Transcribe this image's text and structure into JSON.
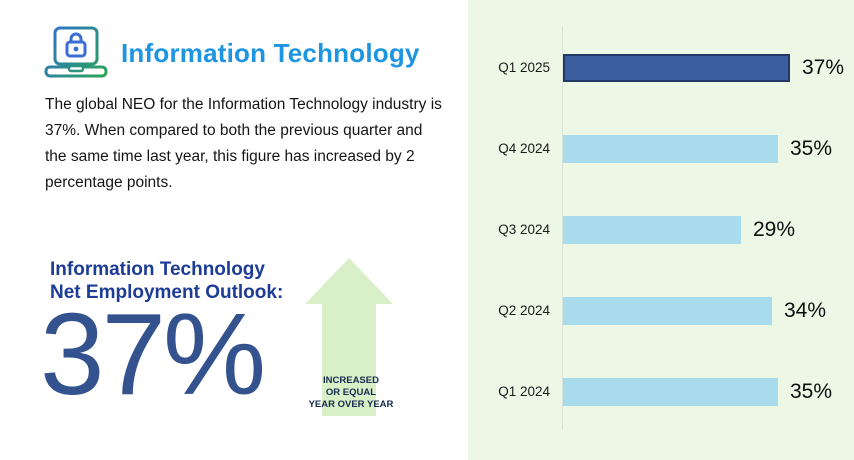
{
  "header": {
    "title": "Information Technology",
    "icon": "laptop-lock-icon"
  },
  "summary": {
    "text": "The global NEO for the Information Technology industry is 37%. When compared to both the previous quarter and the same time last year, this figure has increased by 2 percentage points."
  },
  "outlook": {
    "label_line1": "Information Technology",
    "label_line2": "Net Employment Outlook:",
    "value": "37%",
    "trend": {
      "direction": "up",
      "line1": "INCREASED",
      "line2": "OR EQUAL",
      "line3": "YEAR OVER YEAR",
      "arrow_color": "#d9efc8"
    }
  },
  "chart_data": {
    "type": "bar",
    "orientation": "horizontal",
    "title": "",
    "xlabel": "",
    "ylabel": "",
    "categories": [
      "Q1 2025",
      "Q4 2024",
      "Q3 2024",
      "Q2 2024",
      "Q1 2024"
    ],
    "values": [
      37,
      35,
      29,
      34,
      35
    ],
    "value_labels": [
      "37%",
      "35%",
      "29%",
      "34%",
      "35%"
    ],
    "highlight_index": 0,
    "xlim": [
      0,
      40
    ],
    "grid": false,
    "legend": false,
    "colors": {
      "bar": "#a8dcec",
      "highlight_bar": "#3b5f9e",
      "highlight_border": "#1f3864",
      "panel_background": "#ecf7e6",
      "axis_line": "#d9e3d7",
      "label_text": "#1a1a1a",
      "value_text": "#0d0d0d"
    }
  },
  "colors": {
    "title_blue": "#1e95e0",
    "navy_heading": "#1d3c96",
    "big_value_blue": "#33528e",
    "arrow_green": "#d9efc8"
  }
}
